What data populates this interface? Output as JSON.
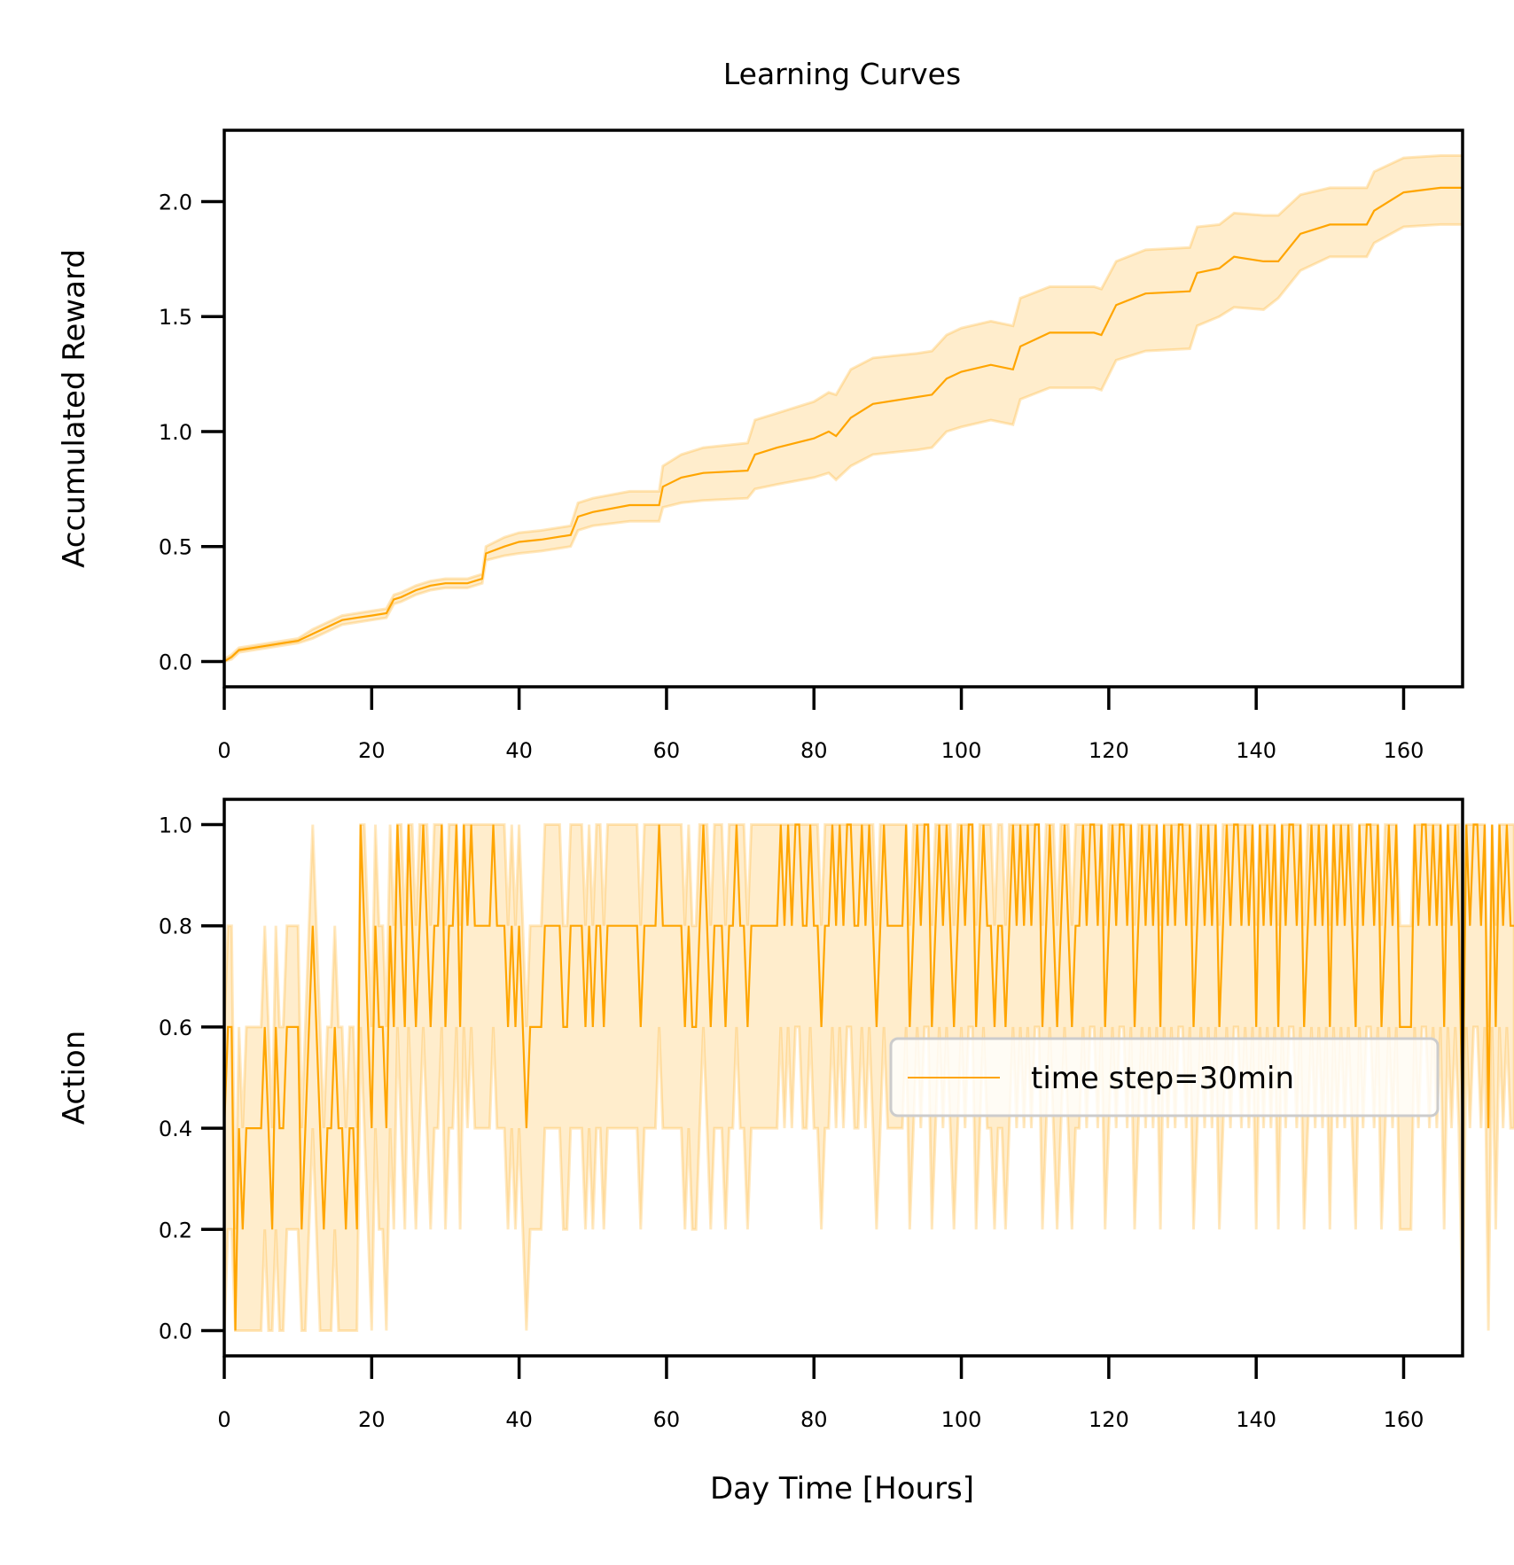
{
  "figure": {
    "title": "Learning Curves"
  },
  "colors": {
    "line": "#FFA500",
    "band": "#FFA500",
    "band_opacity": 0.2,
    "axis": "#000000"
  },
  "chart_data": [
    {
      "type": "line",
      "ylabel": "Accumulated Reward",
      "xlabel": "",
      "xlim": [
        0,
        168
      ],
      "ylim": [
        -0.11,
        2.31
      ],
      "x_ticks": [
        "0",
        "20",
        "40",
        "60",
        "80",
        "100",
        "120",
        "140",
        "160"
      ],
      "y_ticks": [
        "0.0",
        "0.5",
        "1.0",
        "1.5",
        "2.0"
      ],
      "grid": false,
      "series": [
        {
          "x": [
            0,
            1,
            2,
            4,
            6,
            8,
            10,
            12,
            14,
            16,
            18,
            20,
            22,
            23,
            24,
            26,
            28,
            30,
            33,
            35,
            35.5,
            38,
            40,
            43,
            47,
            48,
            50,
            55,
            59,
            59.5,
            62,
            65,
            71,
            72,
            75,
            80,
            82,
            83,
            85,
            88,
            94,
            96,
            98,
            100,
            104,
            107,
            108,
            112,
            118,
            119,
            121,
            125,
            131,
            132,
            135,
            137,
            141,
            143,
            146,
            150,
            155,
            156,
            160,
            165,
            168
          ],
          "y": [
            0.0,
            0.02,
            0.05,
            0.06,
            0.07,
            0.08,
            0.09,
            0.12,
            0.15,
            0.18,
            0.19,
            0.2,
            0.21,
            0.27,
            0.28,
            0.31,
            0.33,
            0.34,
            0.34,
            0.36,
            0.47,
            0.5,
            0.52,
            0.53,
            0.55,
            0.63,
            0.65,
            0.68,
            0.68,
            0.76,
            0.8,
            0.82,
            0.83,
            0.9,
            0.93,
            0.97,
            1.0,
            0.98,
            1.06,
            1.12,
            1.15,
            1.16,
            1.23,
            1.26,
            1.29,
            1.27,
            1.37,
            1.43,
            1.43,
            1.42,
            1.55,
            1.6,
            1.61,
            1.69,
            1.71,
            1.76,
            1.74,
            1.74,
            1.86,
            1.9,
            1.9,
            1.96,
            2.04,
            2.06,
            2.06
          ],
          "lower": [
            0.0,
            0.01,
            0.04,
            0.05,
            0.06,
            0.07,
            0.08,
            0.1,
            0.13,
            0.16,
            0.17,
            0.18,
            0.19,
            0.25,
            0.26,
            0.29,
            0.31,
            0.32,
            0.32,
            0.34,
            0.44,
            0.46,
            0.47,
            0.48,
            0.5,
            0.57,
            0.59,
            0.61,
            0.61,
            0.67,
            0.69,
            0.7,
            0.71,
            0.75,
            0.77,
            0.8,
            0.82,
            0.79,
            0.85,
            0.9,
            0.92,
            0.93,
            1.0,
            1.02,
            1.05,
            1.03,
            1.14,
            1.19,
            1.19,
            1.18,
            1.31,
            1.35,
            1.36,
            1.46,
            1.5,
            1.54,
            1.53,
            1.58,
            1.7,
            1.76,
            1.76,
            1.82,
            1.89,
            1.9,
            1.9
          ],
          "upper": [
            0.01,
            0.03,
            0.06,
            0.07,
            0.08,
            0.09,
            0.1,
            0.14,
            0.17,
            0.2,
            0.21,
            0.22,
            0.23,
            0.29,
            0.3,
            0.33,
            0.35,
            0.36,
            0.36,
            0.38,
            0.5,
            0.54,
            0.56,
            0.57,
            0.59,
            0.69,
            0.71,
            0.74,
            0.74,
            0.85,
            0.9,
            0.93,
            0.95,
            1.05,
            1.08,
            1.13,
            1.17,
            1.16,
            1.27,
            1.32,
            1.34,
            1.35,
            1.42,
            1.45,
            1.48,
            1.46,
            1.58,
            1.63,
            1.63,
            1.62,
            1.74,
            1.79,
            1.8,
            1.89,
            1.9,
            1.95,
            1.94,
            1.94,
            2.03,
            2.06,
            2.06,
            2.13,
            2.19,
            2.2,
            2.2
          ]
        }
      ]
    },
    {
      "type": "line",
      "ylabel": "Action",
      "xlabel": "Day Time [Hours]",
      "xlim": [
        0,
        168
      ],
      "ylim": [
        -0.05,
        1.05
      ],
      "x_ticks": [
        "0",
        "20",
        "40",
        "60",
        "80",
        "100",
        "120",
        "140",
        "160"
      ],
      "y_ticks": [
        "0.0",
        "0.2",
        "0.4",
        "0.6",
        "0.8",
        "1.0"
      ],
      "grid": false,
      "legend": {
        "position": "center-right",
        "entries": [
          "time step=30min"
        ]
      },
      "series": [
        {
          "name": "time step=30min",
          "step_hours": 0.5,
          "x_start": 0,
          "y": [
            0.4,
            0.6,
            0.6,
            0.0,
            0.4,
            0.2,
            0.4,
            0.4,
            0.4,
            0.4,
            0.4,
            0.6,
            0.4,
            0.2,
            0.6,
            0.4,
            0.4,
            0.6,
            0.6,
            0.6,
            0.6,
            0.2,
            0.4,
            0.6,
            0.8,
            0.6,
            0.4,
            0.2,
            0.4,
            0.4,
            0.6,
            0.4,
            0.4,
            0.2,
            0.4,
            0.4,
            0.2,
            1.0,
            0.8,
            0.6,
            0.4,
            0.8,
            0.6,
            0.6,
            0.4,
            0.8,
            0.6,
            1.0,
            0.8,
            0.6,
            1.0,
            0.8,
            0.6,
            0.8,
            1.0,
            0.8,
            0.6,
            0.8,
            0.8,
            1.0,
            0.6,
            0.8,
            0.8,
            1.0,
            0.6,
            1.0,
            0.8,
            1.0,
            0.8,
            0.8,
            0.8,
            0.8,
            0.8,
            1.0,
            0.8,
            0.8,
            0.8,
            0.6,
            0.8,
            0.6,
            0.8,
            0.6,
            0.4,
            0.6,
            0.6,
            0.6,
            0.6,
            0.8,
            0.8,
            0.8,
            0.8,
            0.8,
            0.6,
            0.6,
            0.8,
            0.8,
            0.8,
            0.8,
            0.6,
            0.8,
            0.6,
            0.8,
            0.8,
            0.6,
            0.8,
            0.8,
            0.8,
            0.8,
            0.8,
            0.8,
            0.8,
            0.8,
            0.8,
            0.6,
            0.8,
            0.8,
            0.8,
            0.8,
            1.0,
            0.8,
            0.8,
            0.8,
            0.8,
            0.8,
            0.8,
            0.6,
            0.8,
            0.6,
            0.6,
            0.8,
            1.0,
            0.8,
            0.6,
            0.8,
            0.8,
            0.8,
            0.6,
            0.8,
            0.8,
            1.0,
            0.8,
            0.8,
            0.6,
            0.8,
            0.8,
            0.8,
            0.8,
            0.8,
            0.8,
            0.8,
            0.8,
            1.0,
            0.8,
            1.0,
            0.8,
            1.0,
            1.0,
            0.8,
            0.8,
            1.0,
            0.8,
            0.8,
            0.6,
            0.8,
            0.8,
            1.0,
            0.8,
            1.0,
            0.8,
            1.0,
            1.0,
            0.8,
            0.8,
            1.0,
            0.8,
            1.0,
            0.8,
            0.6,
            0.8,
            1.0,
            0.8,
            0.8,
            0.8,
            0.8,
            0.8,
            1.0,
            0.6,
            0.8,
            1.0,
            0.8,
            1.0,
            1.0,
            0.6,
            0.8,
            1.0,
            0.8,
            1.0,
            0.8,
            0.6,
            0.8,
            1.0,
            0.8,
            1.0,
            1.0,
            0.6,
            0.8,
            1.0,
            0.8,
            0.8,
            0.6,
            0.8,
            0.8,
            0.6,
            0.8,
            1.0,
            0.8,
            1.0,
            0.8,
            1.0,
            0.8,
            1.0,
            1.0,
            0.6,
            0.8,
            1.0,
            0.8,
            0.6,
            0.8,
            1.0,
            0.8,
            0.6,
            0.8,
            0.8,
            1.0,
            0.8,
            1.0,
            1.0,
            0.8,
            1.0,
            0.6,
            0.8,
            1.0,
            0.8,
            1.0,
            1.0,
            0.8,
            1.0,
            0.6,
            0.8,
            1.0,
            0.8,
            1.0,
            0.8,
            1.0,
            0.6,
            1.0,
            0.8,
            1.0,
            0.8,
            1.0,
            1.0,
            0.8,
            1.0,
            0.6,
            0.8,
            1.0,
            0.8,
            1.0,
            0.8,
            1.0,
            0.6,
            0.8,
            1.0,
            0.8,
            1.0,
            1.0,
            0.8,
            1.0,
            0.8,
            1.0,
            0.6,
            1.0,
            0.8,
            1.0,
            0.8,
            1.0,
            0.6,
            1.0,
            0.8,
            1.0,
            1.0,
            0.8,
            1.0,
            0.6,
            0.8,
            1.0,
            0.8,
            1.0,
            0.8,
            1.0,
            0.6,
            1.0,
            0.8,
            1.0,
            0.8,
            1.0,
            0.8,
            0.6,
            1.0,
            0.8,
            1.0,
            1.0,
            0.8,
            1.0,
            0.6,
            0.8,
            1.0,
            0.8,
            1.0,
            0.6,
            0.6,
            0.6,
            0.6,
            1.0,
            0.8,
            1.0,
            1.0,
            0.8,
            1.0,
            0.8,
            1.0,
            0.6,
            1.0,
            0.8,
            1.0,
            0.8,
            0.4,
            1.0,
            0.8,
            1.0,
            1.0,
            0.8,
            1.0,
            0.4,
            1.0,
            0.6,
            1.0,
            0.8,
            1.0,
            0.8,
            0.8
          ]
        }
      ]
    }
  ]
}
